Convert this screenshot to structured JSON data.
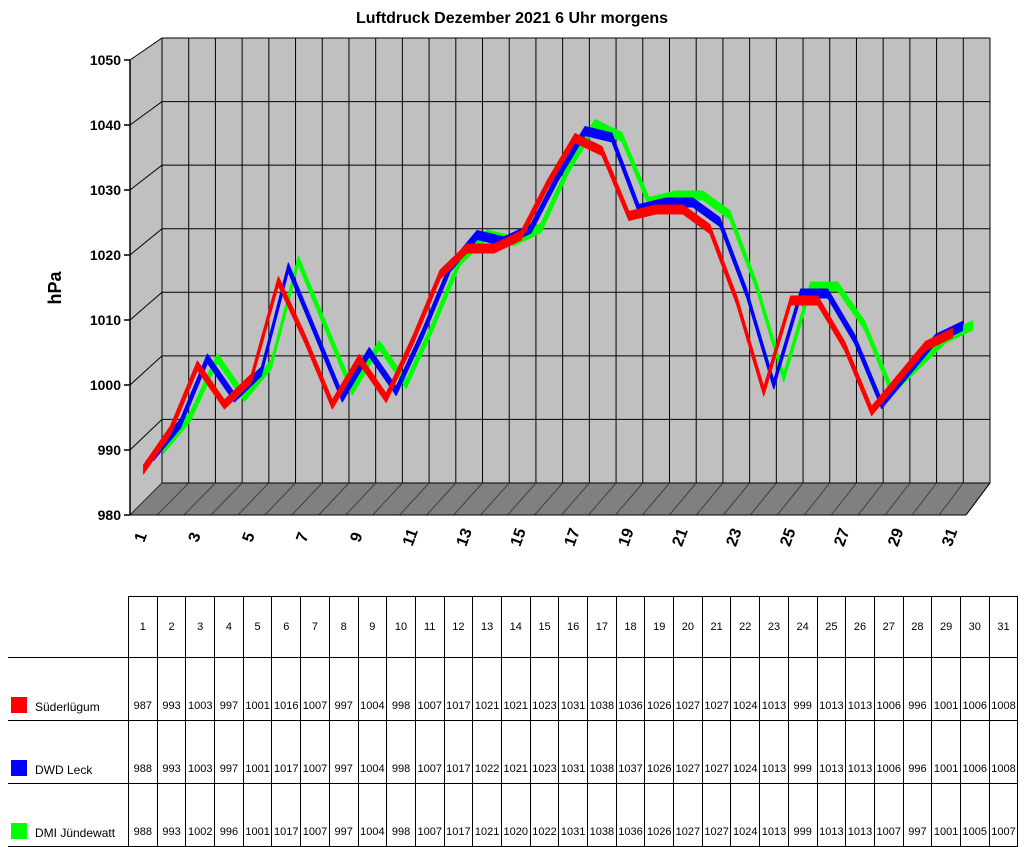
{
  "chart_data": {
    "type": "line",
    "title": "Luftdruck Dezember 2021 6 Uhr morgens",
    "ylabel": "hPa",
    "xlabel": "",
    "ylim": [
      980,
      1050
    ],
    "yticks": [
      980,
      990,
      1000,
      1010,
      1020,
      1030,
      1040,
      1050
    ],
    "x": [
      1,
      2,
      3,
      4,
      5,
      6,
      7,
      8,
      9,
      10,
      11,
      12,
      13,
      14,
      15,
      16,
      17,
      18,
      19,
      20,
      21,
      22,
      23,
      24,
      25,
      26,
      27,
      28,
      29,
      30,
      31
    ],
    "xtick_labels": [
      "1",
      "3",
      "5",
      "7",
      "9",
      "11",
      "13",
      "15",
      "17",
      "19",
      "21",
      "23",
      "25",
      "27",
      "29",
      "31"
    ],
    "grid": true,
    "style": "3d-ribbon",
    "legend": "table-below",
    "series": [
      {
        "name": "Süderlügum",
        "color": "#ff0000",
        "values": [
          987,
          993,
          1003,
          997,
          1001,
          1016,
          1007,
          997,
          1004,
          998,
          1007,
          1017,
          1021,
          1021,
          1023,
          1031,
          1038,
          1036,
          1026,
          1027,
          1027,
          1024,
          1013,
          999,
          1013,
          1013,
          1006,
          996,
          1001,
          1006,
          1008
        ]
      },
      {
        "name": "DWD Leck",
        "color": "#0000ff",
        "values": [
          988,
          993,
          1003,
          997,
          1001,
          1017,
          1007,
          997,
          1004,
          998,
          1007,
          1017,
          1022,
          1021,
          1023,
          1031,
          1038,
          1037,
          1026,
          1027,
          1027,
          1024,
          1013,
          999,
          1013,
          1013,
          1006,
          996,
          1001,
          1006,
          1008
        ]
      },
      {
        "name": "DMI Jündewatt",
        "color": "#00ff00",
        "values": [
          988,
          993,
          1002,
          996,
          1001,
          1017,
          1007,
          997,
          1004,
          998,
          1007,
          1017,
          1021,
          1020,
          1022,
          1031,
          1038,
          1036,
          1026,
          1027,
          1027,
          1024,
          1013,
          999,
          1013,
          1013,
          1007,
          997,
          1001,
          1005,
          1007
        ]
      }
    ]
  }
}
